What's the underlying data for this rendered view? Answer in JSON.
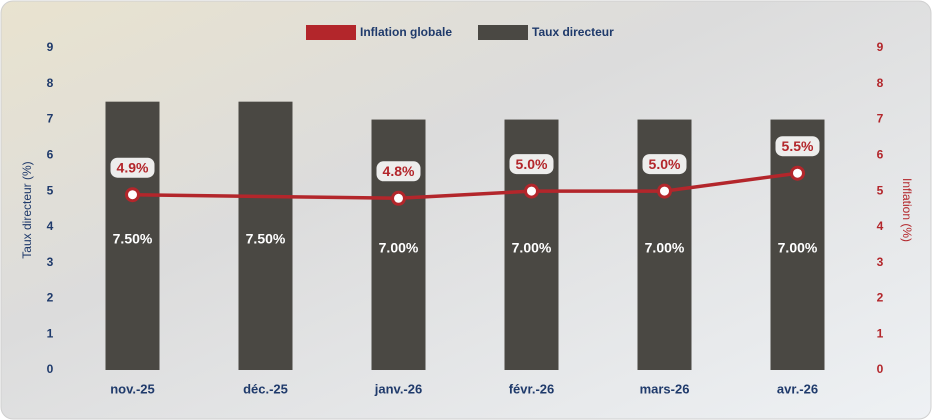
{
  "chart_data": {
    "type": "bar-line",
    "categories": [
      "nov.-25",
      "déc.-25",
      "janv.-26",
      "févr.-26",
      "mars-26",
      "avr.-26"
    ],
    "series": [
      {
        "name": "Taux directeur",
        "type": "bar",
        "axis": "y",
        "color": "#4a4843",
        "values": [
          7.5,
          7.5,
          7.0,
          7.0,
          7.0,
          7.0
        ],
        "value_labels": [
          "7.50%",
          "7.50%",
          "7.00%",
          "7.00%",
          "7.00%",
          "7.00%"
        ]
      },
      {
        "name": "Inflation globale",
        "type": "line",
        "axis": "y2",
        "color": "#b3262b",
        "values": [
          4.9,
          4.85,
          4.8,
          5.0,
          5.0,
          5.5
        ],
        "value_labels": [
          "4.9%",
          null,
          "4.8%",
          "5.0%",
          "5.0%",
          "5.5%"
        ]
      }
    ],
    "ylabel": "Taux directeur (%)",
    "y2label": "Inflation (%)",
    "ylim": [
      0,
      9
    ],
    "yticks": [
      0,
      1,
      2,
      3,
      4,
      5,
      6,
      7,
      8,
      9
    ],
    "y2lim": [
      0,
      9
    ],
    "y2ticks": [
      0,
      1,
      2,
      3,
      4,
      5,
      6,
      7,
      8,
      9
    ],
    "legend": "top"
  }
}
